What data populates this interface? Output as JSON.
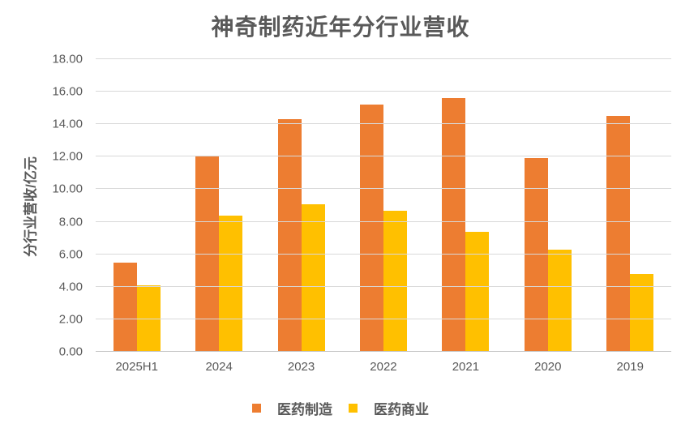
{
  "chart_data": {
    "type": "bar",
    "title": "神奇制药近年分行业营收",
    "xlabel": "",
    "ylabel": "分行业营收/亿元",
    "categories": [
      "2025H1",
      "2024",
      "2023",
      "2022",
      "2021",
      "2020",
      "2019"
    ],
    "series": [
      {
        "name": "医药制造",
        "color": "#ED7D31",
        "values": [
          5.5,
          12.0,
          14.3,
          15.2,
          15.6,
          11.9,
          14.5
        ]
      },
      {
        "name": "医药商业",
        "color": "#FFC000",
        "values": [
          4.1,
          8.4,
          9.1,
          8.7,
          7.4,
          6.3,
          4.8
        ]
      }
    ],
    "ylim": [
      0,
      18
    ],
    "ytick_step": 2,
    "yticks": [
      "0.00",
      "2.00",
      "4.00",
      "6.00",
      "8.00",
      "10.00",
      "12.00",
      "14.00",
      "16.00",
      "18.00"
    ],
    "grid": true,
    "legend_position": "bottom",
    "text_color": "#595959",
    "gridline_color": "#D9D9D9",
    "background_color": "#FFFFFF"
  }
}
